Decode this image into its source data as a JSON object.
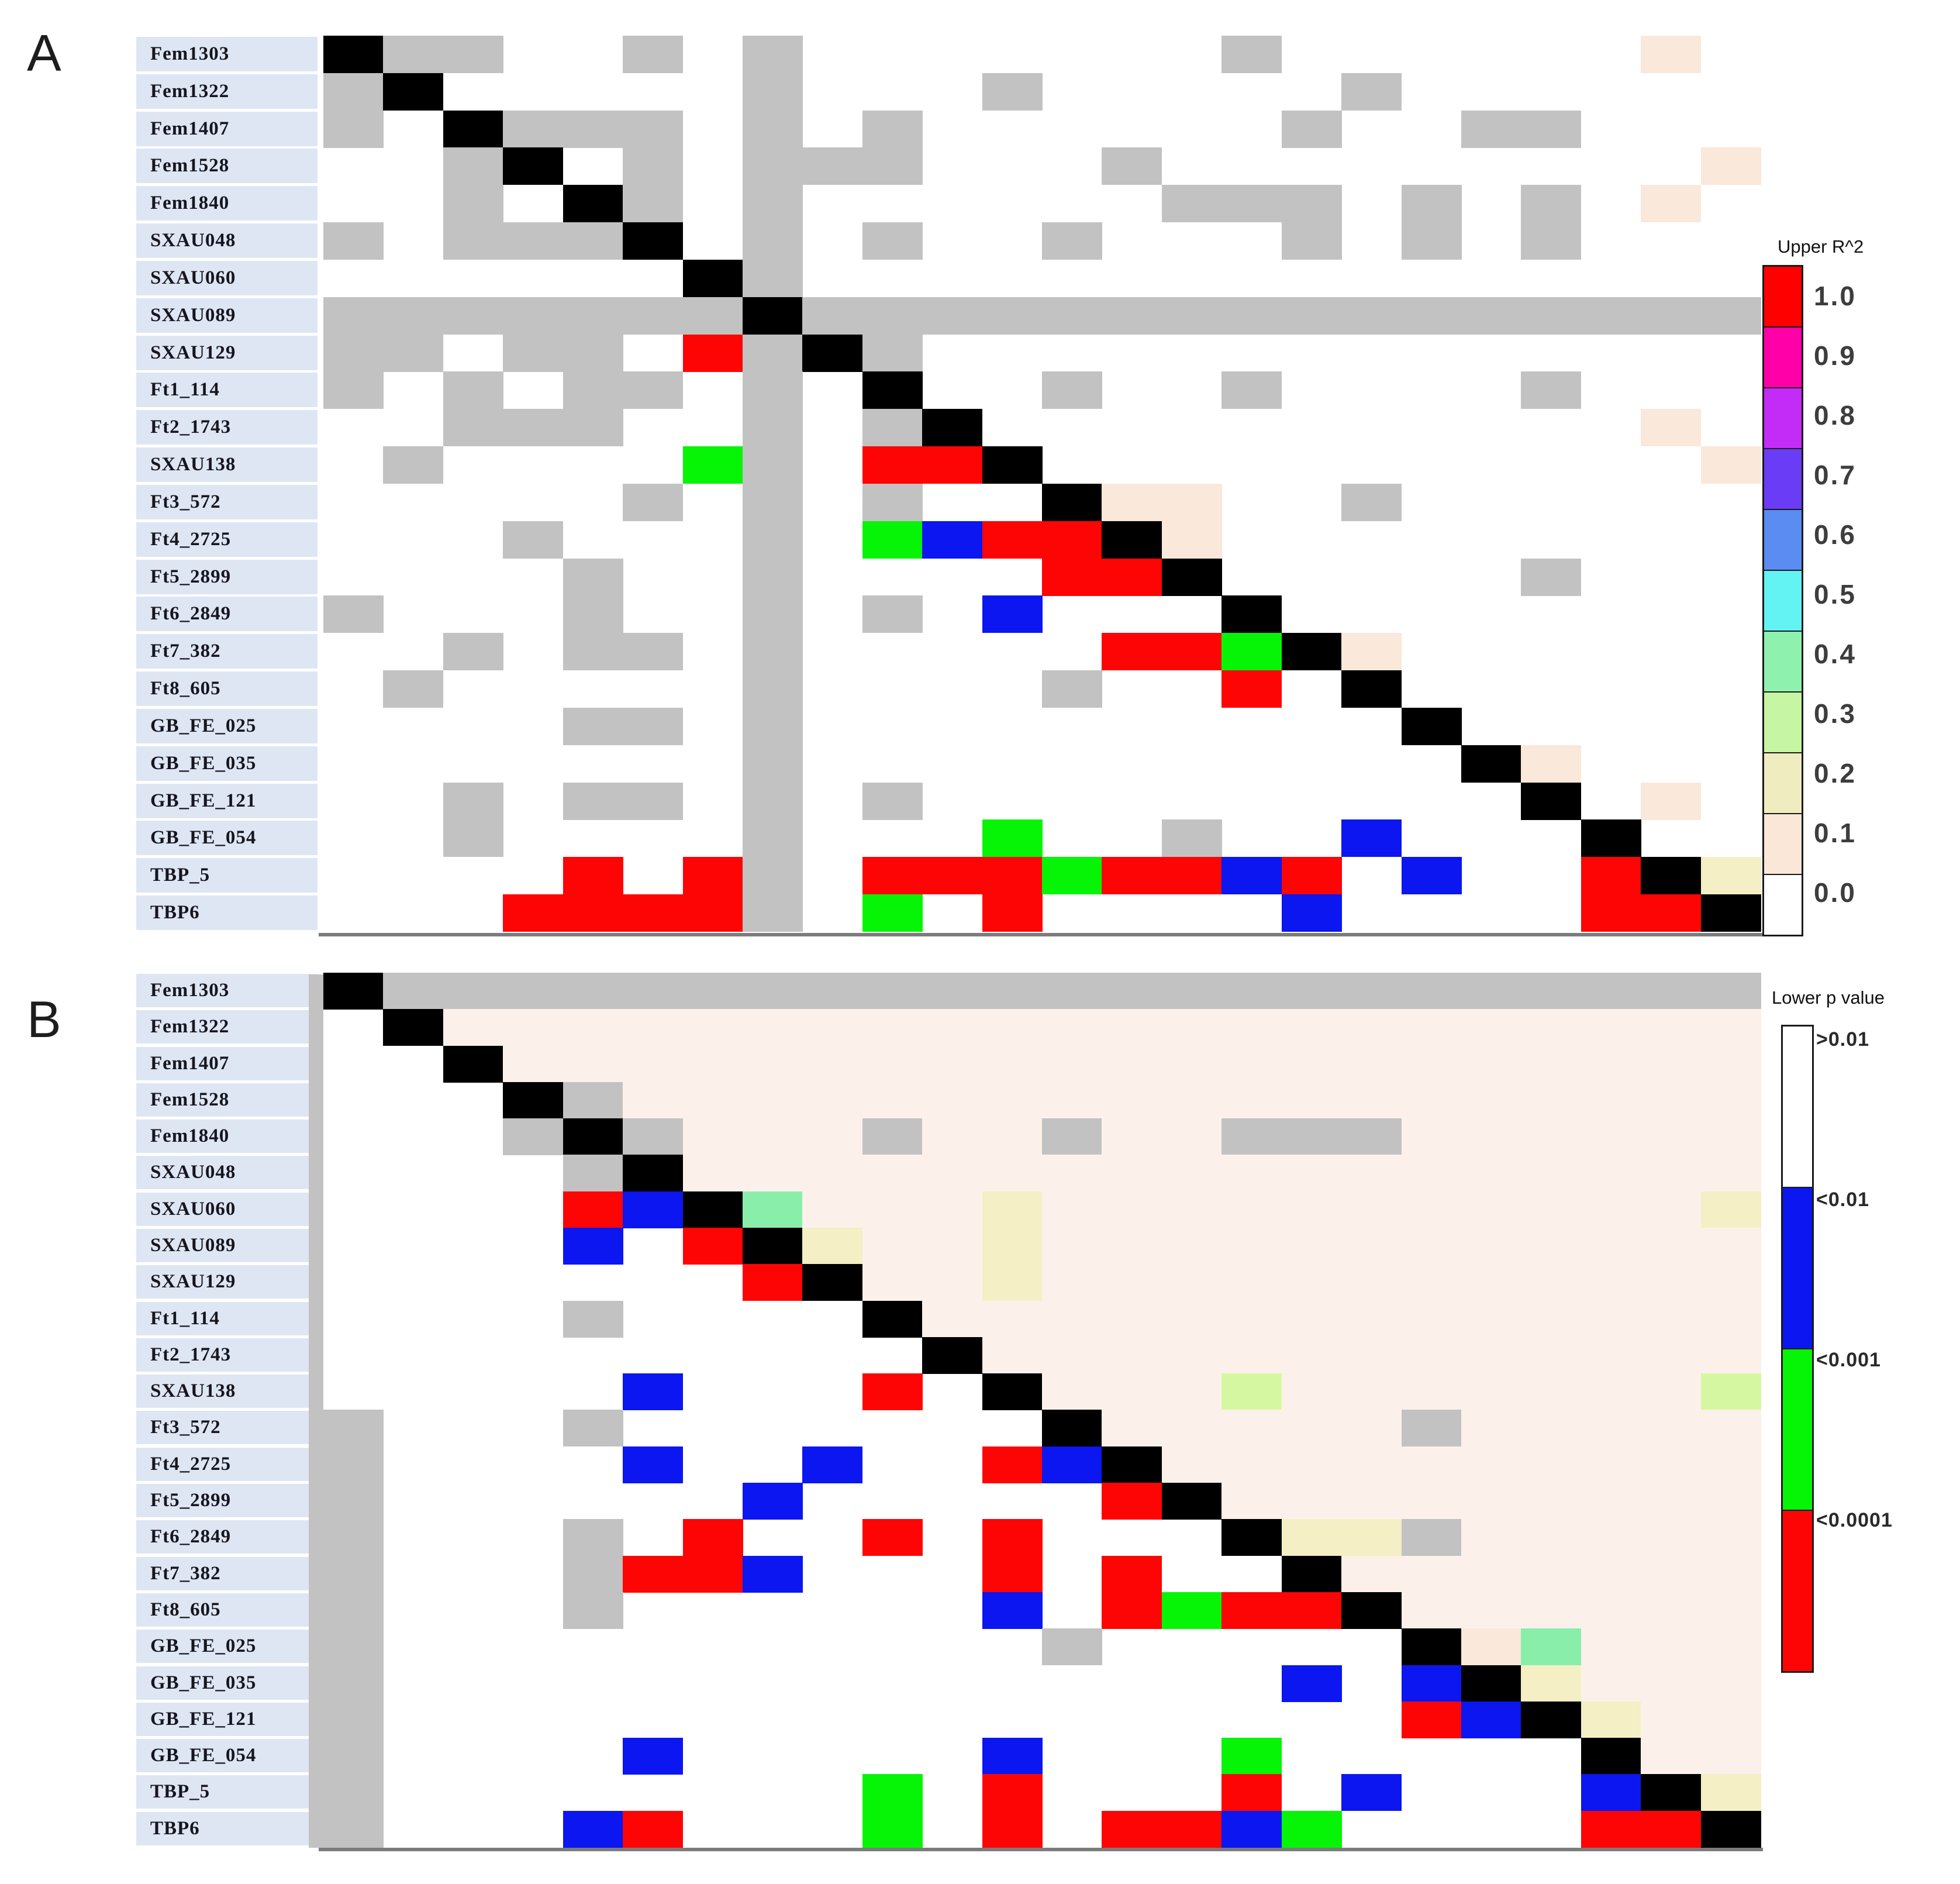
{
  "page": {
    "panel_a_letter": "A",
    "panel_b_letter": "B"
  },
  "color_map": {
    "k": "#000000",
    "g": "#c2c2c2",
    "w": "#ffffff",
    "r": "#fd0505",
    "b": "#0b16f0",
    "n": "#06f406",
    "c": "#fae8da",
    "y": "#f4efc4",
    "e": "#8aeeab",
    "l": "#d6f7a2",
    "f": "#fcf1ea"
  },
  "chart_data": [
    {
      "type": "heatmap",
      "panel": "A",
      "legend_title": "Upper R^2",
      "labels": [
        "Fem1303",
        "Fem1322",
        "Fem1407",
        "Fem1528",
        "Fem1840",
        "SXAU048",
        "SXAU060",
        "SXAU089",
        "SXAU129",
        "Ft1_114",
        "Ft2_1743",
        "SXAU138",
        "Ft3_572",
        "Ft4_2725",
        "Ft5_2899",
        "Ft6_2849",
        "Ft7_382",
        "Ft8_605",
        "GB_FE_025",
        "GB_FE_035",
        "GB_FE_121",
        "GB_FE_054",
        "TBP_5",
        "TBP6"
      ],
      "cell_meaning": "k=diagonal, g=missing, w=R2 0.0, c=R2 0.1, y=R2 0.2, l=R2 0.3, e=R2 0.4, b/n/r=lower-triangle p-value classes",
      "rows": [
        "kggwwgwgwwwwwwwgwwwwwwcw",
        "gkwwwwwgwwwgwwwwwgwwwwww",
        "gwkgggwgwgwwwwwwgwwggwww",
        "wwgkwgwgggwwwgwwwwwwwwwc",
        "wwgwkgwgwwwwwwgggwgwgwcw",
        "gwgggkwgwgwwgwwwgwgwgwww",
        "wwwwwwkgwwwwwwwwwwwwwwww",
        "gggggggkgggggggggggggggg",
        "ggwggwrgkgwwwwwwwwwwwwww",
        "gwgwggwgwkwwgwwgwwwwgwww",
        "wwgggwwgwgkwwwwwwwwwwwcw",
        "wgwwwwngwrrkwwwwwwwwwwwc",
        "wwwwwgwgwgwwkccwwgwwwwww",
        "wwwgwwwgwnbrrkcwwwwwwwww",
        "wwwwgwwgwwwwrrkwwwwwgwww",
        "gwwwgwwgwgwbwwwkwwwwwwww",
        "wwgwggwgwwwwwrrnkcwwwwww",
        "wgwwwwwgwwwwgwwrwkwwwwww",
        "wwwwggwgwwwwwwwwwwkwwwww",
        "wwwwwwwgwwwwwwwwwwwkcwww",
        "wwgwggwgwgwwwwwwwwwwkwcw",
        "wwgwwwwgwwwnwwgwwbwwwkww",
        "wwwwrwrgwrrrnrrbrwbwwrky",
        "wwwrrrrgwnwrwwwwbwwwwrrk"
      ],
      "legend_entries": [
        {
          "label": "1.0",
          "color": "#fe0000"
        },
        {
          "label": "0.9",
          "color": "#ff00a8"
        },
        {
          "label": "0.8",
          "color": "#c32cf7"
        },
        {
          "label": "0.7",
          "color": "#6a3cf5"
        },
        {
          "label": "0.6",
          "color": "#5a8cf2"
        },
        {
          "label": "0.5",
          "color": "#63f3f3"
        },
        {
          "label": "0.4",
          "color": "#8ef2ae"
        },
        {
          "label": "0.3",
          "color": "#c6f5a3"
        },
        {
          "label": "0.2",
          "color": "#efedc0"
        },
        {
          "label": "0.1",
          "color": "#fae7d8"
        },
        {
          "label": "0.0",
          "color": "#ffffff"
        }
      ]
    },
    {
      "type": "heatmap",
      "panel": "B",
      "legend_title": "Lower p value",
      "labels": [
        "Fem1303",
        "Fem1322",
        "Fem1407",
        "Fem1528",
        "Fem1840",
        "SXAU048",
        "SXAU060",
        "SXAU089",
        "SXAU129",
        "Ft1_114",
        "Ft2_1743",
        "SXAU138",
        "Ft3_572",
        "Ft4_2725",
        "Ft5_2899",
        "Ft6_2849",
        "Ft7_382",
        "Ft8_605",
        "GB_FE_025",
        "GB_FE_035",
        "GB_FE_121",
        "GB_FE_054",
        "TBP_5",
        "TBP6"
      ],
      "cell_meaning": "k=diagonal, g=missing, w/f=p>0.01, b=p<0.01, n=p<0.001, r=p<0.0001, c/y/e/l=pale upper-triangle tints",
      "rows": [
        "kggggggggggggggggggggggg",
        "wkffffffffffffffffffffff",
        "wwkfffffffffffffffffffff",
        "wwwkgfffffffffffffffffff",
        "wwwgkgfffgffgffgggffffff",
        "wwwwgkffffffffffffffffff",
        "wwwwrbkefffyfffffffffffy",
        "wwwwbwrkyffyffffffffffff",
        "wwwwwwwrkffyffffffffffff",
        "wwwwgwwwwkffffffffffffff",
        "wwwwwwwwwwkfffffffffffff",
        "wwwwwbwwwrwkffflfffffffl",
        "gwwwgwwwwwwwkfffffgfffff",
        "gwwwwbwwbwwrbkffffffffff",
        "gwwwwwwbwwwwwrkfffffffff",
        "gwwwgwrwwrwrwwwkyygfffff",
        "gwwwgrrbwwwrwrwwkfffffff",
        "gwwwgwwwwwwbwrnrrkffffff",
        "gwwwwwwwwwwwgwwwwwkcefff",
        "gwwwwwwwwwwwwwwwbwbkyfff",
        "gwwwwwwwwwwwwwwwwwrbkyff",
        "gwwwwbwwwwwbwwwnwwwwwkff",
        "gwwwwwwwwnwrwwwrwbwwwbky",
        "gwwwbrwwwnwrwrrbnwwwwrrk"
      ],
      "legend_entries": [
        {
          "label": ">0.01",
          "color": "#ffffff"
        },
        {
          "label": "<0.01",
          "color": "#0b16f0"
        },
        {
          "label": "<0.001",
          "color": "#06f406"
        },
        {
          "label": "<0.0001",
          "color": "#fd0505"
        }
      ]
    }
  ]
}
